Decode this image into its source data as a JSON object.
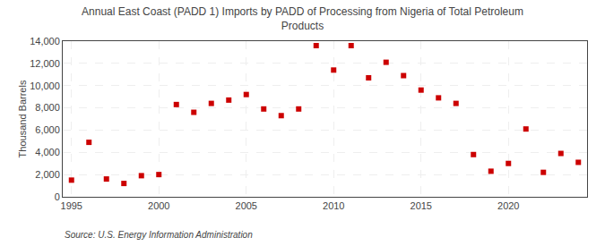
{
  "chart_data": {
    "type": "scatter",
    "title": "Annual East Coast (PADD 1) Imports by PADD of Processing from Nigeria of Total Petroleum\nProducts",
    "ylabel": "Thousand Barrels",
    "source": "Source: U.S. Energy Information Administration",
    "x": [
      1995,
      1996,
      1997,
      1998,
      1999,
      2000,
      2001,
      2002,
      2003,
      2004,
      2005,
      2006,
      2007,
      2008,
      2009,
      2010,
      2011,
      2012,
      2013,
      2014,
      2015,
      2016,
      2017,
      2018,
      2019,
      2020,
      2021,
      2022,
      2023,
      2024
    ],
    "values": [
      1500,
      4900,
      1600,
      1200,
      1900,
      2000,
      8300,
      7600,
      8400,
      8700,
      9200,
      7900,
      7300,
      7900,
      13600,
      11400,
      13600,
      10700,
      12100,
      10900,
      9600,
      8900,
      8400,
      3800,
      2300,
      3000,
      6100,
      2200,
      3900,
      3100
    ],
    "color": "#cc0000",
    "marker": "square",
    "xlim": [
      1994.5,
      2024.5
    ],
    "xticks": [
      1995,
      2000,
      2005,
      2010,
      2015,
      2020
    ],
    "ylim": [
      0,
      14000
    ],
    "yticks": [
      0,
      {
        "value": 2000,
        "label": "2,000"
      },
      {
        "value": 4000,
        "label": "4,000"
      },
      {
        "value": 6000,
        "label": "6,000"
      },
      {
        "value": 8000,
        "label": "8,000"
      },
      {
        "value": 10000,
        "label": "10,000"
      },
      {
        "value": 12000,
        "label": "12,000"
      },
      {
        "value": 14000,
        "label": "14,000"
      }
    ],
    "grid": true
  }
}
